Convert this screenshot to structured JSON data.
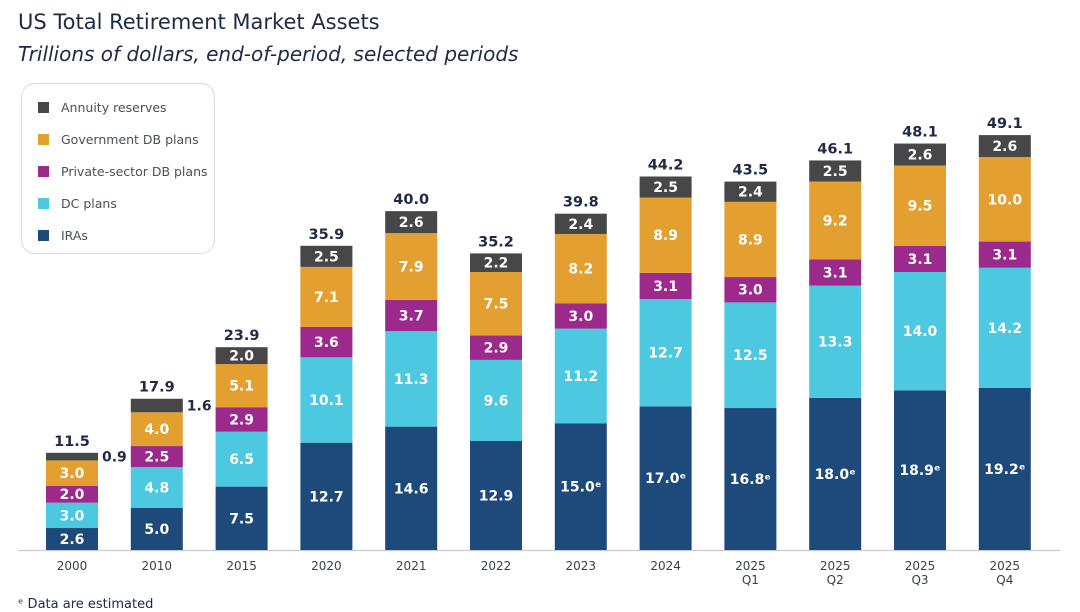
{
  "chart_data": {
    "type": "bar",
    "stacked": true,
    "title": "US Total Retirement Market Assets",
    "subtitle": "Trillions of dollars, end-of-period, selected periods",
    "categories": [
      [
        "2000"
      ],
      [
        "2010"
      ],
      [
        "2015"
      ],
      [
        "2020"
      ],
      [
        "2021"
      ],
      [
        "2022"
      ],
      [
        "2023"
      ],
      [
        "2024"
      ],
      [
        "2025",
        "Q1"
      ],
      [
        "2025",
        "Q2"
      ],
      [
        "2025",
        "Q3"
      ],
      [
        "2025",
        "Q4"
      ]
    ],
    "series": [
      {
        "name": "IRAs",
        "color": "#1d4a7a",
        "text_color": "#ffffff",
        "values": [
          2.6,
          5.0,
          7.5,
          12.7,
          14.6,
          12.9,
          15.0,
          17.0,
          16.8,
          18.0,
          18.9,
          19.2
        ],
        "labels": [
          "2.6",
          "5.0",
          "7.5",
          "12.7",
          "14.6",
          "12.9",
          "15.0ᵉ",
          "17.0ᵉ",
          "16.8ᵉ",
          "18.0ᵉ",
          "18.9ᵉ",
          "19.2ᵉ"
        ]
      },
      {
        "name": "DC plans",
        "color": "#4cc8e0",
        "text_color": "#ffffff",
        "values": [
          3.0,
          4.8,
          6.5,
          10.1,
          11.3,
          9.6,
          11.2,
          12.7,
          12.5,
          13.3,
          14.0,
          14.2
        ],
        "labels": [
          "3.0",
          "4.8",
          "6.5",
          "10.1",
          "11.3",
          "9.6",
          "11.2",
          "12.7",
          "12.5",
          "13.3",
          "14.0",
          "14.2"
        ]
      },
      {
        "name": "Private-sector DB plans",
        "color": "#9b2a8c",
        "text_color": "#ffffff",
        "values": [
          2.0,
          2.5,
          2.9,
          3.6,
          3.7,
          2.9,
          3.0,
          3.1,
          3.0,
          3.1,
          3.1,
          3.1
        ],
        "labels": [
          "2.0",
          "2.5",
          "2.9",
          "3.6",
          "3.7",
          "2.9",
          "3.0",
          "3.1",
          "3.0",
          "3.1",
          "3.1",
          "3.1"
        ]
      },
      {
        "name": "Government DB plans",
        "color": "#e3a031",
        "text_color": "#ffffff",
        "values": [
          3.0,
          4.0,
          5.1,
          7.1,
          7.9,
          7.5,
          8.2,
          8.9,
          8.9,
          9.2,
          9.5,
          10.0
        ],
        "labels": [
          "3.0",
          "4.0",
          "5.1",
          "7.1",
          "7.9",
          "7.5",
          "8.2",
          "8.9",
          "8.9",
          "9.2",
          "9.5",
          "10.0"
        ]
      },
      {
        "name": "Annuity reserves",
        "color": "#474749",
        "text_color": "#ffffff",
        "values": [
          0.9,
          1.6,
          2.0,
          2.5,
          2.6,
          2.2,
          2.4,
          2.5,
          2.4,
          2.5,
          2.6,
          2.6
        ],
        "labels": [
          "0.9",
          "1.6",
          "2.0",
          "2.5",
          "2.6",
          "2.2",
          "2.4",
          "2.5",
          "2.4",
          "2.5",
          "2.6",
          "2.6"
        ],
        "outside_label": [
          true,
          true,
          false,
          false,
          false,
          false,
          false,
          false,
          false,
          false,
          false,
          false
        ]
      }
    ],
    "totals": [
      "11.5",
      "17.9",
      "23.9",
      "35.9",
      "40.0",
      "35.2",
      "39.8",
      "44.2",
      "43.5",
      "46.1",
      "48.1",
      "49.1"
    ],
    "legend_order": [
      "Annuity reserves",
      "Government DB plans",
      "Private-sector DB plans",
      "DC plans",
      "IRAs"
    ],
    "legend_placement": "top-left",
    "grid": false,
    "ylim": [
      0,
      49.1
    ],
    "footnote": "ᵉ Data are estimated"
  }
}
